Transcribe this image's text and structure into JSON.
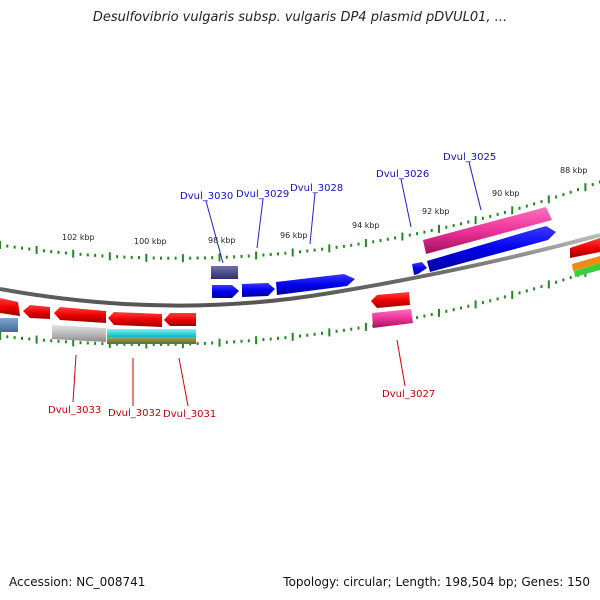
{
  "title": "Desulfovibrio vulgaris subsp. vulgaris DP4 plasmid pDVUL01, ...",
  "footer": {
    "accession": "Accession: NC_008741",
    "stats": "Topology: circular; Length: 198,504 bp; Genes: 150"
  },
  "ruler": [
    "102 kbp",
    "100 kbp",
    "98 kbp",
    "96 kbp",
    "94 kbp",
    "92 kbp",
    "90 kbp",
    "88 kbp"
  ],
  "gene_labels_forward": [
    "Dvul_3030",
    "Dvul_3029",
    "Dvul_3028",
    "Dvul_3026",
    "Dvul_3025"
  ],
  "gene_labels_reverse": [
    "Dvul_3033",
    "Dvul_3032",
    "Dvul_3031",
    "Dvul_3027"
  ],
  "colors": {
    "forward_cds": "#0000ee",
    "reverse_cds": "#ee0000",
    "pink_feature": "#ee3399",
    "dark_purple": "#4a4a8a",
    "backbone": "#888888",
    "tick_green": "#228822"
  }
}
